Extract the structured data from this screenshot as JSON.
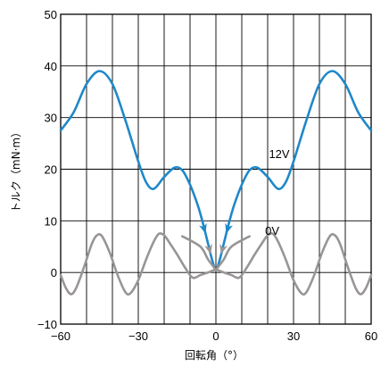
{
  "chart_data": {
    "type": "line",
    "xlabel": "回転角（°）",
    "ylabel": "トルク（mN·m）",
    "xlim": [
      -60,
      60
    ],
    "ylim": [
      -10,
      50
    ],
    "x_ticks": [
      -60,
      -30,
      0,
      30,
      60
    ],
    "y_ticks": [
      -10,
      0,
      10,
      20,
      30,
      40,
      50
    ],
    "x_tick_labels": [
      "−60",
      "−30",
      "0",
      "30",
      "60"
    ],
    "y_tick_labels": [
      "−10",
      "0",
      "10",
      "20",
      "30",
      "40",
      "50"
    ],
    "x_grid_step": 10,
    "y_grid_step": 10,
    "grid": true,
    "series": [
      {
        "name": "12V",
        "color": "#1f88c9",
        "points": [
          [
            -60,
            27.5
          ],
          [
            -55,
            31.0
          ],
          [
            -50,
            36.5
          ],
          [
            -45,
            39.0
          ],
          [
            -40,
            36.5
          ],
          [
            -35,
            29.5
          ],
          [
            -30,
            21.5
          ],
          [
            -27,
            17.5
          ],
          [
            -24,
            16.2
          ],
          [
            -20,
            18.5
          ],
          [
            -16,
            20.3
          ],
          [
            -13,
            19.8
          ],
          [
            -10,
            17.0
          ],
          [
            -7,
            13.0
          ],
          [
            -5,
            9.5
          ],
          [
            -3,
            5.5
          ],
          [
            -1.5,
            2.5
          ],
          [
            0,
            0.5
          ],
          [
            1.5,
            2.5
          ],
          [
            3,
            5.5
          ],
          [
            5,
            9.5
          ],
          [
            7,
            13.0
          ],
          [
            10,
            17.0
          ],
          [
            13,
            19.8
          ],
          [
            16,
            20.3
          ],
          [
            20,
            18.5
          ],
          [
            24,
            16.2
          ],
          [
            27,
            17.5
          ],
          [
            30,
            21.5
          ],
          [
            35,
            29.5
          ],
          [
            40,
            36.5
          ],
          [
            45,
            39.0
          ],
          [
            50,
            36.5
          ],
          [
            55,
            31.0
          ],
          [
            60,
            27.5
          ]
        ],
        "arrows": [
          {
            "from": [
              -6,
              11
            ],
            "to": [
              -4,
              7.5
            ]
          },
          {
            "from": [
              6,
              11
            ],
            "to": [
              4,
              7.5
            ]
          }
        ]
      },
      {
        "name": "0V",
        "color": "#9a9595",
        "points": [
          [
            -60,
            -0.5
          ],
          [
            -58,
            -3.0
          ],
          [
            -56,
            -4.2
          ],
          [
            -54,
            -3.0
          ],
          [
            -51,
            1.0
          ],
          [
            -48,
            5.5
          ],
          [
            -46,
            7.2
          ],
          [
            -44,
            7.0
          ],
          [
            -41,
            3.8
          ],
          [
            -38,
            -0.5
          ],
          [
            -35,
            -3.8
          ],
          [
            -33,
            -4.0
          ],
          [
            -30,
            -1.5
          ],
          [
            -27,
            2.5
          ],
          [
            -24,
            6.0
          ],
          [
            -22,
            7.5
          ],
          [
            -20,
            7.2
          ],
          [
            -18,
            5.8
          ],
          [
            -15,
            3.5
          ],
          [
            -12,
            1.0
          ],
          [
            -9,
            -1.0
          ],
          [
            -6,
            -0.5
          ],
          [
            -3,
            0.0
          ],
          [
            0,
            0.5
          ],
          [
            3,
            0.0
          ],
          [
            6,
            -0.5
          ],
          [
            9,
            -1.0
          ],
          [
            12,
            1.0
          ],
          [
            15,
            3.5
          ],
          [
            18,
            5.8
          ],
          [
            20,
            7.2
          ],
          [
            22,
            7.5
          ],
          [
            24,
            6.0
          ],
          [
            27,
            2.5
          ],
          [
            30,
            -1.5
          ],
          [
            33,
            -4.0
          ],
          [
            35,
            -3.8
          ],
          [
            38,
            -0.5
          ],
          [
            41,
            3.8
          ],
          [
            44,
            7.0
          ],
          [
            46,
            7.2
          ],
          [
            48,
            5.5
          ],
          [
            51,
            1.0
          ],
          [
            54,
            -3.0
          ],
          [
            56,
            -4.2
          ],
          [
            58,
            -3.0
          ],
          [
            60,
            -0.5
          ]
        ],
        "dip_segments": [
          [
            [
              -13,
              7.0
            ],
            [
              -6,
              5.0
            ],
            [
              -3,
              2.5
            ],
            [
              0,
              0.5
            ]
          ],
          [
            [
              13,
              7.0
            ],
            [
              6,
              5.0
            ],
            [
              3,
              2.5
            ],
            [
              0,
              0.5
            ]
          ]
        ],
        "arrows": [
          {
            "from": [
              -3.5,
              6.5
            ],
            "to": [
              -2,
              3.5
            ]
          },
          {
            "from": [
              3.5,
              6.5
            ],
            "to": [
              2,
              3.5
            ]
          }
        ]
      }
    ],
    "annotations": [
      {
        "text": "12V",
        "x": 20.5,
        "y": 22.2
      },
      {
        "text": "0V",
        "x": 19,
        "y": 7.3
      }
    ]
  }
}
